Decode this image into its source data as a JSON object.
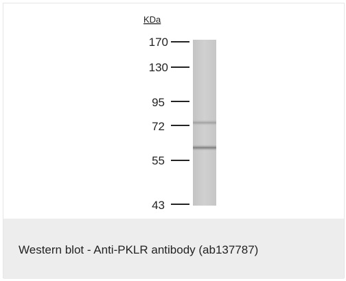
{
  "figure": {
    "unit_label": "KDa",
    "markers": [
      {
        "label": "170"
      },
      {
        "label": "130"
      },
      {
        "label": "95"
      },
      {
        "label": "72"
      },
      {
        "label": "55"
      },
      {
        "label": "43"
      }
    ],
    "colors": {
      "lane": "#c9c9c9",
      "band": "#8a8a8a",
      "tick": "#222222",
      "caption_bg": "#ededed"
    }
  },
  "caption": {
    "text": "Western blot - Anti-PKLR antibody (ab137787)"
  }
}
